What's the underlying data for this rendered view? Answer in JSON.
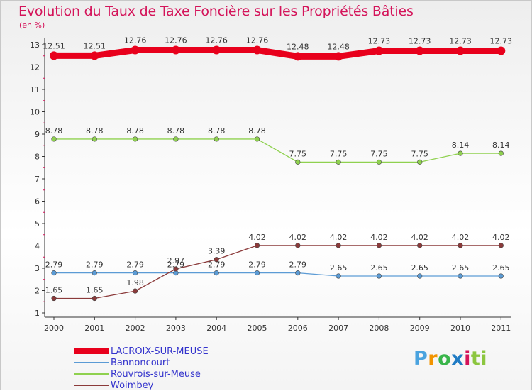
{
  "title": "Evolution du Taux de Taxe Foncière sur les Propriétés Bâties",
  "unit_label": "(en %)",
  "logo": {
    "text": "Proxiti",
    "letters": [
      "P",
      "r",
      "o",
      "x",
      "i",
      "ti"
    ]
  },
  "chart_data": {
    "type": "line",
    "title": "Evolution du Taux de Taxe Foncière sur les Propriétés Bâties",
    "ylabel": "(en %)",
    "xlabel": "",
    "x": [
      "2000",
      "2001",
      "2002",
      "2003",
      "2004",
      "2005",
      "2006",
      "2007",
      "2008",
      "2009",
      "2010",
      "2011"
    ],
    "ylim": [
      1,
      13
    ],
    "yticks": [
      1,
      2,
      3,
      4,
      5,
      6,
      7,
      8,
      9,
      10,
      11,
      12,
      13
    ],
    "grid": false,
    "legend_position": "bottom-left",
    "series": [
      {
        "name": "LACROIX-SUR-MEUSE",
        "color": "#e8001c",
        "width": "thick",
        "values": [
          12.51,
          12.51,
          12.76,
          12.76,
          12.76,
          12.76,
          12.48,
          12.48,
          12.73,
          12.73,
          12.73,
          12.73
        ],
        "labels": [
          "12.51",
          "12.51",
          "12.76",
          "12.76",
          "12.76",
          "12.76",
          "12.48",
          "12.48",
          "12.73",
          "12.73",
          "12.73",
          "12.73"
        ]
      },
      {
        "name": "Bannoncourt",
        "color": "#5b9bd5",
        "width": "thin",
        "values": [
          2.79,
          2.79,
          2.79,
          2.79,
          2.79,
          2.79,
          2.79,
          2.65,
          2.65,
          2.65,
          2.65,
          2.65
        ],
        "labels": [
          "2.79",
          "2.79",
          "2.79",
          "2.79",
          "2.79",
          "2.79",
          "2.79",
          "2.65",
          "2.65",
          "2.65",
          "2.65",
          "2.65"
        ]
      },
      {
        "name": "Rouvrois-sur-Meuse",
        "color": "#8fd14f",
        "width": "thin",
        "values": [
          8.78,
          8.78,
          8.78,
          8.78,
          8.78,
          8.78,
          7.75,
          7.75,
          7.75,
          7.75,
          8.14,
          8.14
        ],
        "labels": [
          "8.78",
          "8.78",
          "8.78",
          "8.78",
          "8.78",
          "8.78",
          "7.75",
          "7.75",
          "7.75",
          "7.75",
          "8.14",
          "8.14"
        ]
      },
      {
        "name": "Woimbey",
        "color": "#8b3a3a",
        "width": "thin",
        "values": [
          1.65,
          1.65,
          1.98,
          2.97,
          3.39,
          4.02,
          4.02,
          4.02,
          4.02,
          4.02,
          4.02,
          4.02
        ],
        "labels": [
          "1.65",
          "1.65",
          "1.98",
          "2.97",
          "3.39",
          "4.02",
          "4.02",
          "4.02",
          "4.02",
          "4.02",
          "4.02",
          "4.02"
        ]
      }
    ]
  }
}
